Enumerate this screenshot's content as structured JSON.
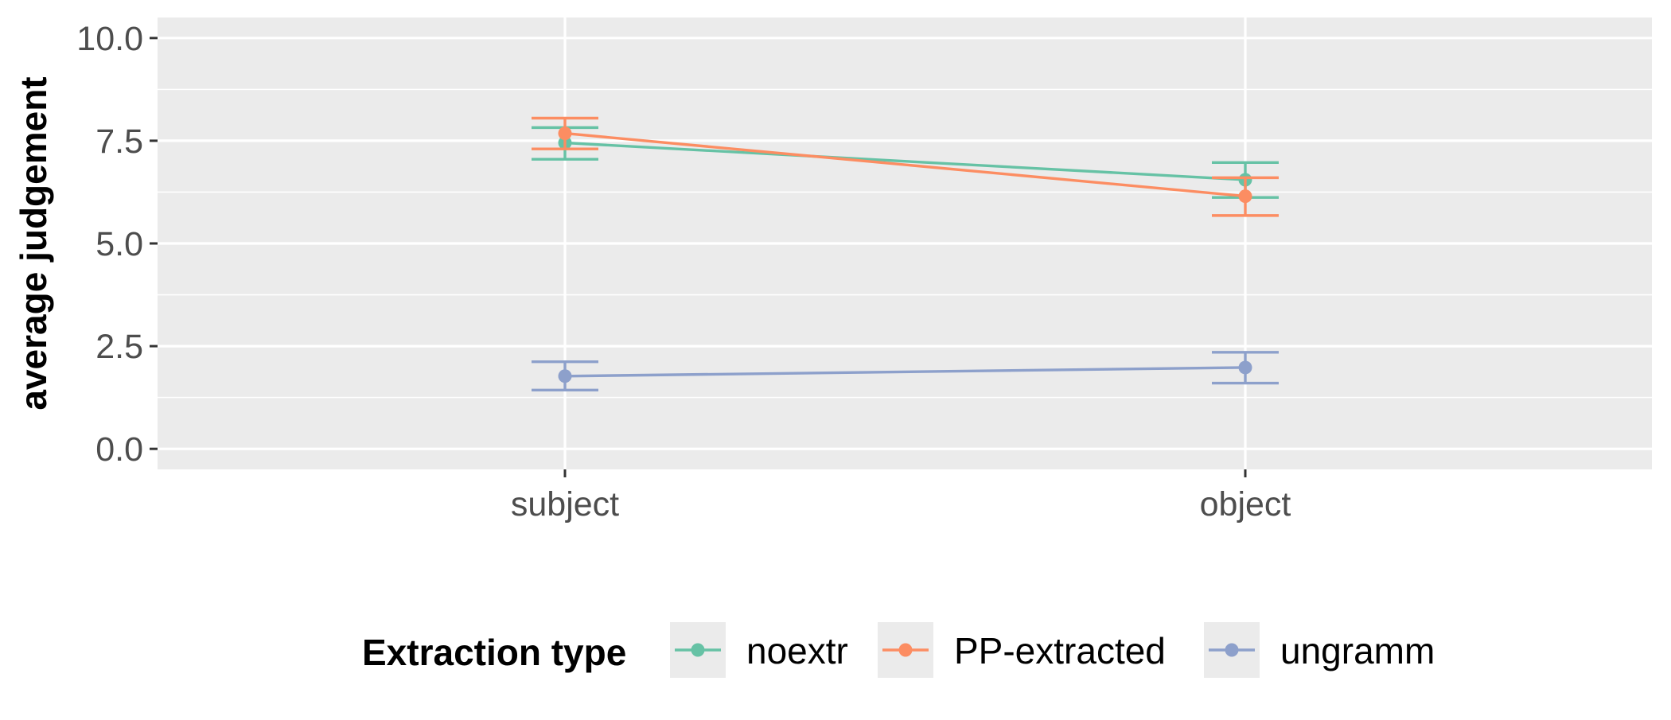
{
  "chart_data": {
    "type": "line",
    "xlabel": "",
    "ylabel": "average judgement",
    "categories": [
      "subject",
      "object"
    ],
    "ylim": [
      -0.5,
      10.5
    ],
    "yticks": [
      "0.0",
      "2.5",
      "5.0",
      "7.5",
      "10.0"
    ],
    "grid": true,
    "error_bars": true,
    "legend": {
      "title": "Extraction type",
      "position": "bottom"
    },
    "series": [
      {
        "name": "noextr",
        "color": "#66c2a5",
        "values": [
          7.45,
          6.55
        ],
        "lower": [
          7.05,
          6.12
        ],
        "upper": [
          7.82,
          6.97
        ]
      },
      {
        "name": "PP-extracted",
        "color": "#fc8d62",
        "values": [
          7.68,
          6.15
        ],
        "lower": [
          7.3,
          5.68
        ],
        "upper": [
          8.05,
          6.6
        ]
      },
      {
        "name": "ungramm",
        "color": "#8da0cb",
        "values": [
          1.77,
          1.98
        ],
        "lower": [
          1.43,
          1.6
        ],
        "upper": [
          2.12,
          2.35
        ]
      }
    ]
  }
}
